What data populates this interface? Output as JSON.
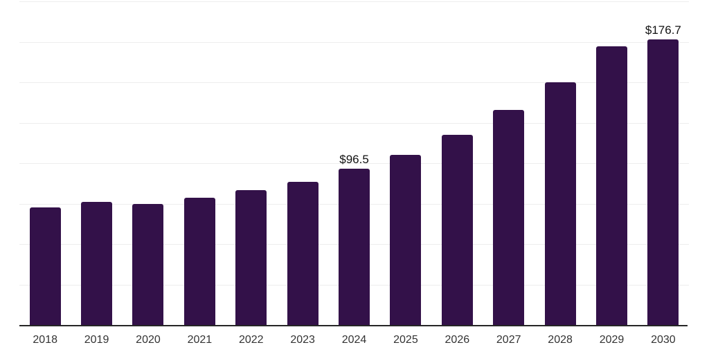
{
  "chart_data": {
    "type": "bar",
    "title": "",
    "xlabel": "",
    "ylabel": "",
    "categories": [
      "2018",
      "2019",
      "2020",
      "2021",
      "2022",
      "2023",
      "2024",
      "2025",
      "2026",
      "2027",
      "2028",
      "2029",
      "2030"
    ],
    "values": [
      72.8,
      76.0,
      74.8,
      78.5,
      83.3,
      88.3,
      96.5,
      105.1,
      117.4,
      132.7,
      150.2,
      172.4,
      176.7
    ],
    "value_labels": [
      "",
      "",
      "",
      "",
      "",
      "",
      "$96.5",
      "",
      "",
      "",
      "",
      "",
      "$176.7"
    ],
    "ylim": [
      0,
      200
    ],
    "gridline_step": 25,
    "grid": "horizontal-only",
    "legend": "none",
    "y_tick_labels_shown": false,
    "colors": {
      "bar": "#331149",
      "gridline": "#ededed",
      "axis_line": "#262626",
      "tick_label": "#333333",
      "value_label": "#111111",
      "background": "#ffffff"
    }
  }
}
